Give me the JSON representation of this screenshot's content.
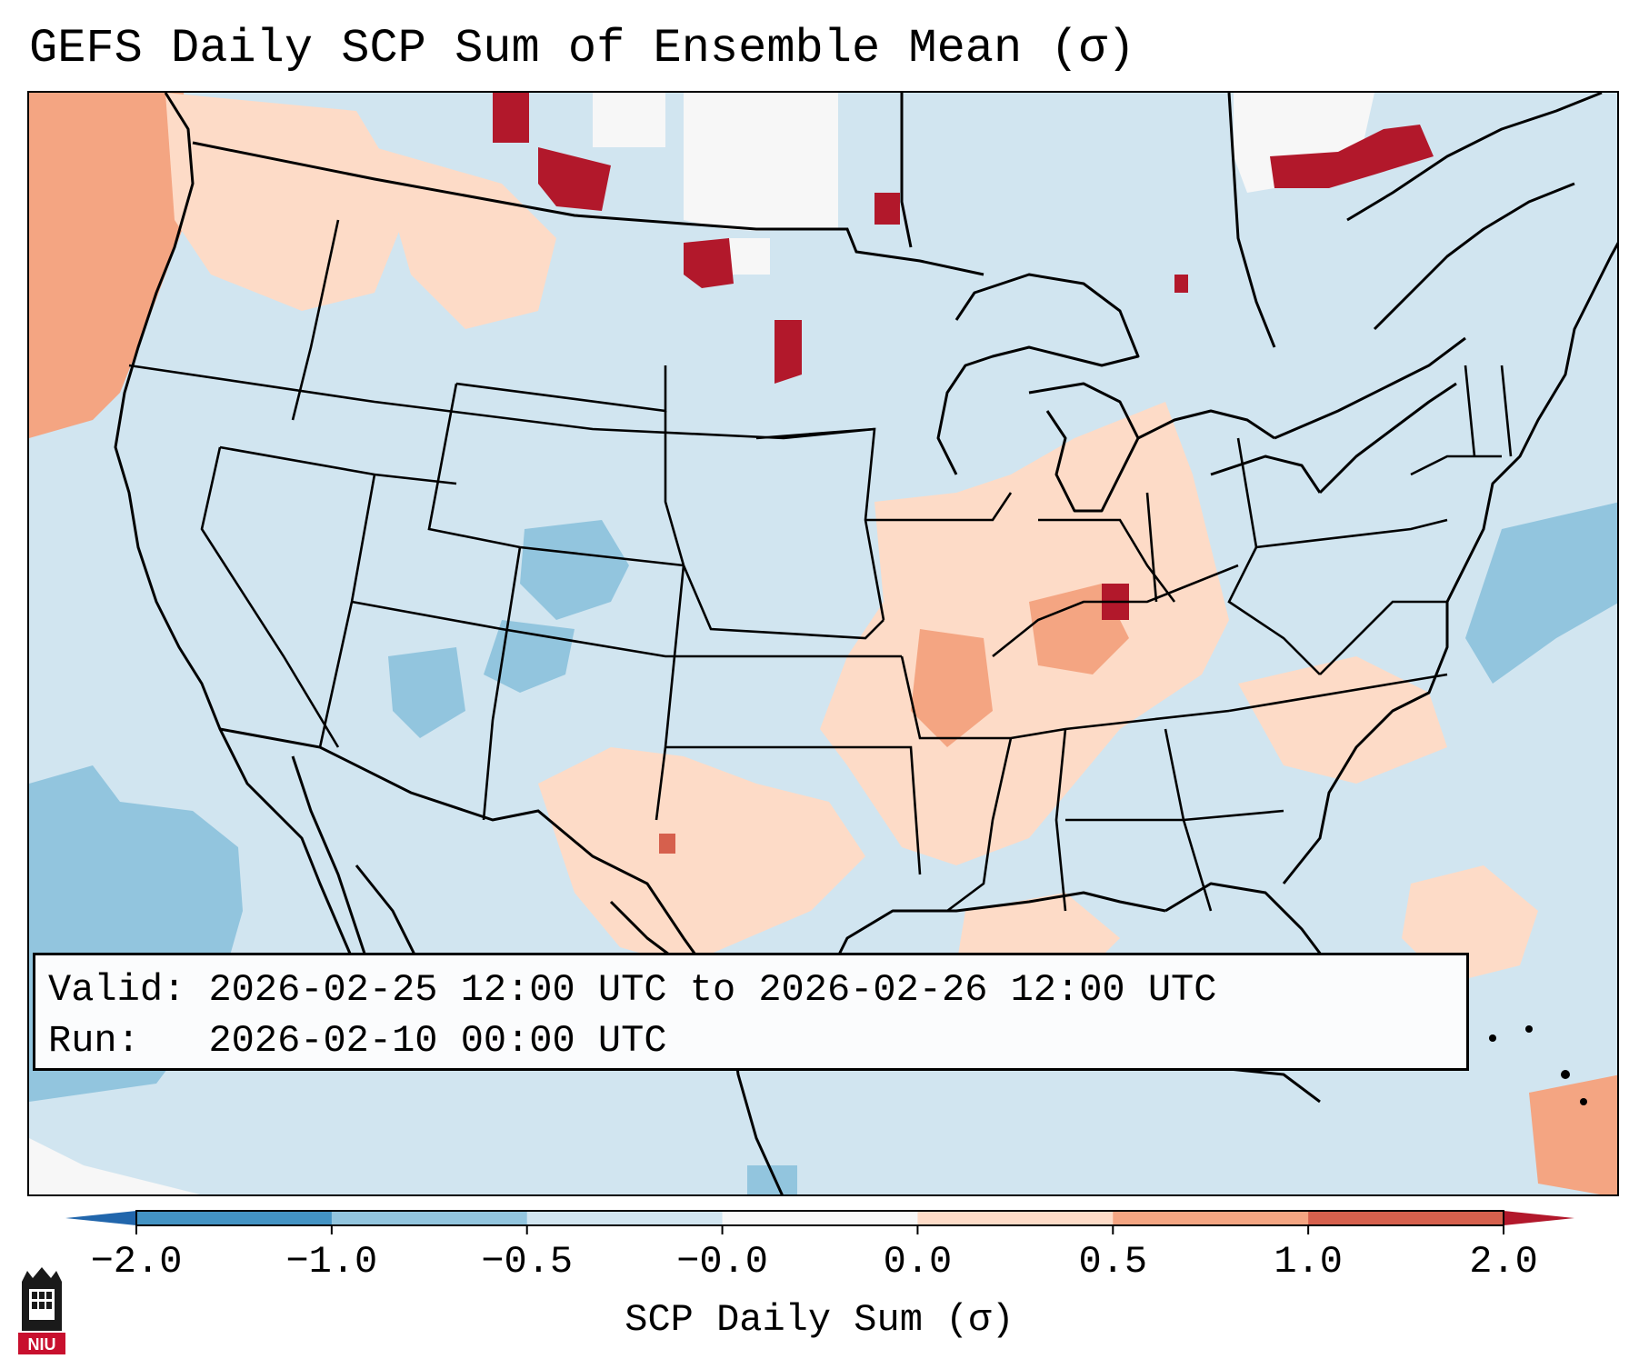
{
  "title": "GEFS Daily SCP Sum of Ensemble Mean (σ)",
  "map": {
    "projection": "lambert-conformal CONUS",
    "ocean_color": "#d1e5f0",
    "line_color": "#000000",
    "hotspots": [
      {
        "region": "Pacific Northwest / BC coast",
        "level": "0.5 to 1.0"
      },
      {
        "region": "Southern Saskatchewan / North Dakota",
        "level": "1.0 to 2.0"
      },
      {
        "region": "Northern Ontario / Quebec",
        "level": "1.0 to 2.0"
      },
      {
        "region": "Mississippi / Ohio Valley",
        "level": "0.0 to 1.0"
      },
      {
        "region": "Colorado / New Mexico Rockies",
        "level": "-1.0 to -0.5"
      },
      {
        "region": "Eastern Pacific",
        "level": "-1.0 to -0.5"
      }
    ]
  },
  "info": {
    "valid_label": "Valid:",
    "valid_value": "2026-02-25 12:00 UTC to 2026-02-26 12:00 UTC",
    "run_label": "Run:",
    "run_value": "2026-02-10 00:00 UTC"
  },
  "colorbar": {
    "label": "SCP Daily Sum (σ)",
    "ticks": [
      "−2.0",
      "−1.0",
      "−0.5",
      "−0.0",
      "0.0",
      "0.5",
      "1.0",
      "2.0"
    ],
    "bins": [
      {
        "range": "below -2.0",
        "color": "#2166ac"
      },
      {
        "range": "-2.0 to -1.0",
        "color": "#4393c3"
      },
      {
        "range": "-1.0 to -0.5",
        "color": "#92c5de"
      },
      {
        "range": "-0.5 to -0.0",
        "color": "#d1e5f0"
      },
      {
        "range": "-0.0 to 0.0",
        "color": "#f7f7f7"
      },
      {
        "range": "0.0 to 0.5",
        "color": "#fddbc7"
      },
      {
        "range": "0.5 to 1.0",
        "color": "#f4a582"
      },
      {
        "range": "1.0 to 2.0",
        "color": "#d6604d"
      },
      {
        "range": "above 2.0",
        "color": "#b2182b"
      }
    ]
  },
  "logo": {
    "text": "NIU",
    "name": "Northern Illinois University"
  }
}
